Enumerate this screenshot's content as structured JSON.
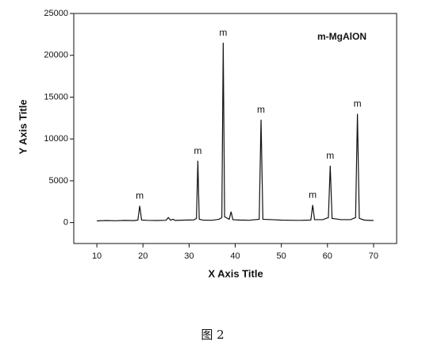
{
  "chart_data": {
    "type": "line",
    "x_label": "X Axis Title",
    "y_label": "Y Axis Title",
    "xlim": [
      5,
      75
    ],
    "ylim": [
      -2500,
      25000
    ],
    "xticks": [
      10,
      20,
      30,
      40,
      50,
      60,
      70
    ],
    "yticks": [
      0,
      5000,
      10000,
      15000,
      20000,
      25000
    ],
    "legend": "upper right",
    "x": [
      10,
      12,
      14,
      16,
      18,
      18.9,
      19.3,
      19.7,
      21,
      23,
      25,
      25.5,
      26,
      26.5,
      27,
      29,
      31,
      31.6,
      31.9,
      32.2,
      33,
      35,
      36.5,
      37.1,
      37.4,
      37.7,
      38.7,
      39.1,
      39.5,
      41,
      42,
      43,
      45.2,
      45.6,
      46,
      48,
      50,
      52,
      54,
      56.4,
      56.8,
      57.2,
      59,
      60.2,
      60.6,
      61,
      63,
      65,
      66.1,
      66.5,
      66.9,
      68,
      70
    ],
    "series": [
      {
        "name": "m-MgAlON",
        "color": "#111111",
        "values": [
          200,
          250,
          220,
          260,
          240,
          300,
          2000,
          300,
          270,
          250,
          280,
          600,
          280,
          400,
          260,
          300,
          320,
          500,
          7400,
          400,
          300,
          280,
          400,
          600,
          21500,
          700,
          400,
          1300,
          350,
          300,
          300,
          280,
          400,
          12300,
          400,
          350,
          300,
          280,
          270,
          300,
          2100,
          350,
          350,
          600,
          6800,
          500,
          350,
          350,
          600,
          13000,
          500,
          300,
          250
        ]
      }
    ],
    "annotations": [
      {
        "text": "m",
        "x": 19.3,
        "y": 2000
      },
      {
        "text": "m",
        "x": 31.9,
        "y": 7400
      },
      {
        "text": "m",
        "x": 37.4,
        "y": 21500
      },
      {
        "text": "m",
        "x": 45.6,
        "y": 12300
      },
      {
        "text": "m",
        "x": 56.8,
        "y": 2100
      },
      {
        "text": "m",
        "x": 60.6,
        "y": 6800
      },
      {
        "text": "m",
        "x": 66.5,
        "y": 13000
      }
    ]
  },
  "caption": "图 2"
}
